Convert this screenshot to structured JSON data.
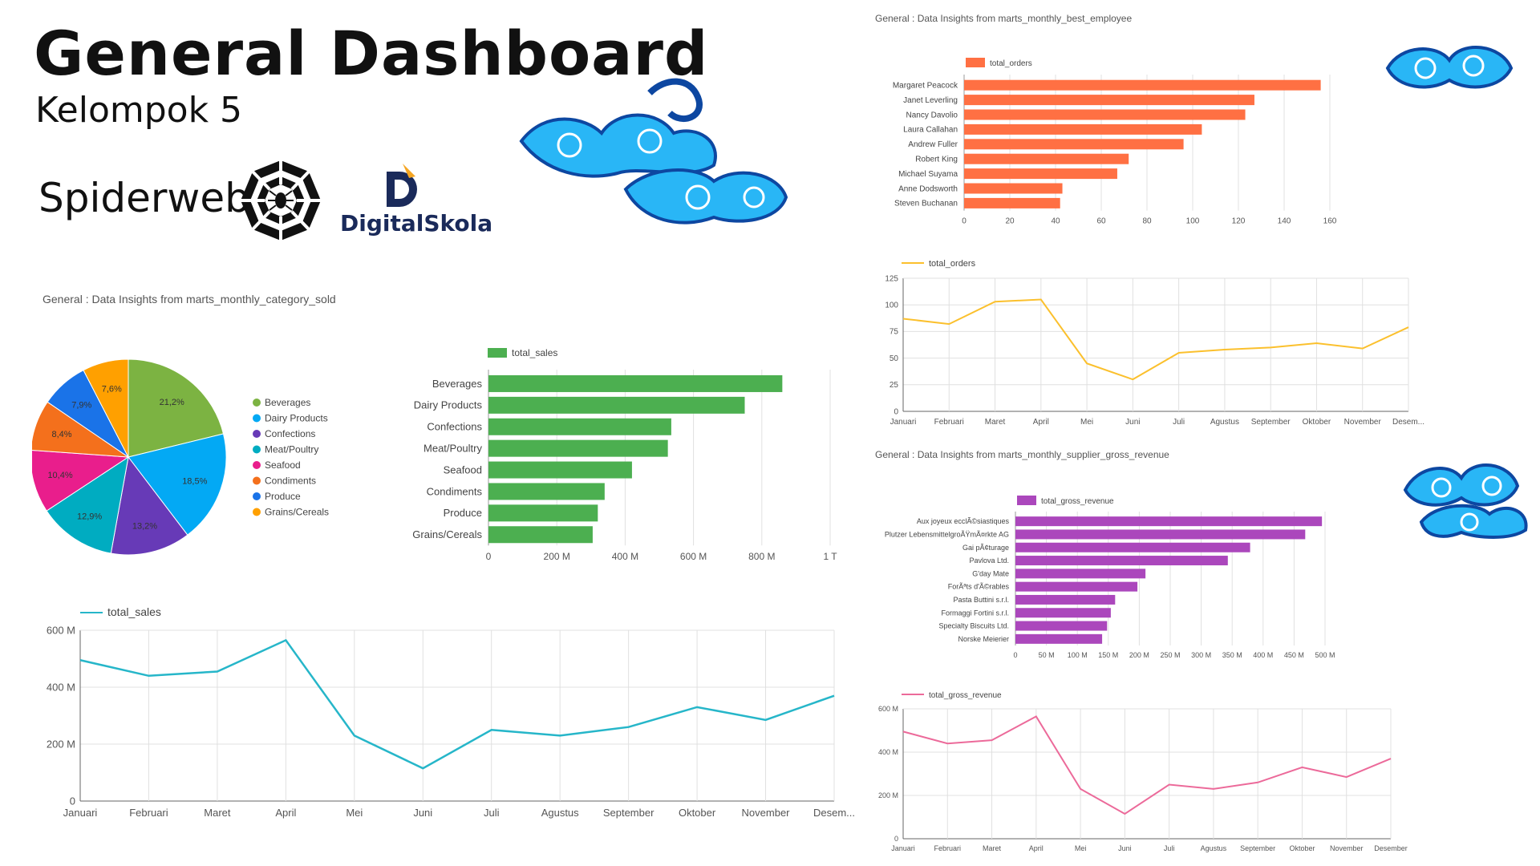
{
  "header": {
    "title": "General Dashboard",
    "subtitle": "Kelompok 5",
    "brand_spiderweb": "Spiderweb",
    "brand_digitalskola": "DigitalSkola"
  },
  "sections": {
    "category_title": "General : Data Insights from marts_monthly_category_sold",
    "employee_title": "General : Data Insights from marts_monthly_best_employee",
    "supplier_title": "General : Data Insights from marts_monthly_supplier_gross_revenue"
  },
  "colors": {
    "sales_bar": "#4caf50",
    "sales_line": "#26b6c9",
    "orders_bar": "#ff7043",
    "orders_line": "#fbc02d",
    "revenue_bar": "#ab47bc",
    "revenue_line": "#ec6a9a",
    "batik_blue": "#1e88e5"
  },
  "chart_data": [
    {
      "id": "category_pie",
      "type": "pie",
      "categories": [
        "Beverages",
        "Dairy Products",
        "Confections",
        "Meat/Poultry",
        "Seafood",
        "Condiments",
        "Produce",
        "Grains/Cereals"
      ],
      "values": [
        21.2,
        18.5,
        13.2,
        12.9,
        10.4,
        8.4,
        7.9,
        7.6
      ],
      "labels": [
        "21,2%",
        "18,5%",
        "13,2%",
        "12,9%",
        "10,4%",
        "8,4%",
        "7,9%",
        "7,6%"
      ],
      "colors": [
        "#7cb342",
        "#03a9f4",
        "#673ab7",
        "#00acc1",
        "#e91e8c",
        "#f4701c",
        "#1a73e8",
        "#ffa000"
      ],
      "legend": "right"
    },
    {
      "id": "category_bar",
      "type": "bar",
      "orientation": "horizontal",
      "series_name": "total_sales",
      "categories": [
        "Beverages",
        "Dairy Products",
        "Confections",
        "Meat/Poultry",
        "Seafood",
        "Condiments",
        "Produce",
        "Grains/Cereals"
      ],
      "values": [
        860,
        750,
        535,
        525,
        420,
        340,
        320,
        305
      ],
      "value_unit": "M",
      "xlim": [
        0,
        1000
      ],
      "ticks": [
        "0",
        "200 M",
        "400 M",
        "600 M",
        "800 M",
        "1 T"
      ],
      "legend": "top"
    },
    {
      "id": "sales_line",
      "type": "line",
      "series_name": "total_sales",
      "x": [
        "Januari",
        "Februari",
        "Maret",
        "April",
        "Mei",
        "Juni",
        "Juli",
        "Agustus",
        "September",
        "Oktober",
        "November",
        "Desem..."
      ],
      "values": [
        495,
        440,
        455,
        565,
        230,
        115,
        250,
        230,
        260,
        330,
        285,
        370
      ],
      "value_unit": "M",
      "ylim": [
        0,
        600
      ],
      "yticks": [
        "0",
        "200 M",
        "400 M",
        "600 M"
      ],
      "legend": "top"
    },
    {
      "id": "employee_bar",
      "type": "bar",
      "orientation": "horizontal",
      "series_name": "total_orders",
      "categories": [
        "Margaret Peacock",
        "Janet Leverling",
        "Nancy Davolio",
        "Laura Callahan",
        "Andrew Fuller",
        "Robert King",
        "Michael Suyama",
        "Anne Dodsworth",
        "Steven Buchanan"
      ],
      "values": [
        156,
        127,
        123,
        104,
        96,
        72,
        67,
        43,
        42
      ],
      "xlim": [
        0,
        160
      ],
      "ticks": [
        "0",
        "20",
        "40",
        "60",
        "80",
        "100",
        "120",
        "140",
        "160"
      ],
      "legend": "top"
    },
    {
      "id": "orders_line",
      "type": "line",
      "series_name": "total_orders",
      "x": [
        "Januari",
        "Februari",
        "Maret",
        "April",
        "Mei",
        "Juni",
        "Juli",
        "Agustus",
        "September",
        "Oktober",
        "November",
        "Desem..."
      ],
      "values": [
        87,
        82,
        103,
        105,
        45,
        30,
        55,
        58,
        60,
        64,
        59,
        79
      ],
      "ylim": [
        0,
        125
      ],
      "yticks": [
        "0",
        "25",
        "50",
        "75",
        "100",
        "125"
      ],
      "legend": "top"
    },
    {
      "id": "supplier_bar",
      "type": "bar",
      "orientation": "horizontal",
      "series_name": "total_gross_revenue",
      "categories": [
        "Aux joyeux ecclÃ©siastiques",
        "Plutzer LebensmittelgroÃŸmÃ¤rkte AG",
        "Gai pÃ¢turage",
        "Pavlova Ltd.",
        "G'day Mate",
        "ForÃªts d'Ã©rables",
        "Pasta Buttini s.r.l.",
        "Formaggi Fortini s.r.l.",
        "Specialty Biscuits Ltd.",
        "Norske Meierier"
      ],
      "values": [
        495,
        468,
        379,
        343,
        210,
        197,
        161,
        154,
        148,
        140
      ],
      "value_unit": "M",
      "xlim": [
        0,
        500
      ],
      "ticks": [
        "0",
        "50 M",
        "100 M",
        "150 M",
        "200 M",
        "250 M",
        "300 M",
        "350 M",
        "400 M",
        "450 M",
        "500 M"
      ],
      "legend": "top"
    },
    {
      "id": "revenue_line",
      "type": "line",
      "series_name": "total_gross_revenue",
      "x": [
        "Januari",
        "Februari",
        "Maret",
        "April",
        "Mei",
        "Juni",
        "Juli",
        "Agustus",
        "September",
        "Oktober",
        "November",
        "Desember"
      ],
      "values": [
        495,
        440,
        455,
        565,
        230,
        115,
        250,
        230,
        260,
        330,
        285,
        370
      ],
      "value_unit": "M",
      "ylim": [
        0,
        600
      ],
      "yticks": [
        "0",
        "200 M",
        "400 M",
        "600 M"
      ],
      "legend": "top"
    }
  ]
}
